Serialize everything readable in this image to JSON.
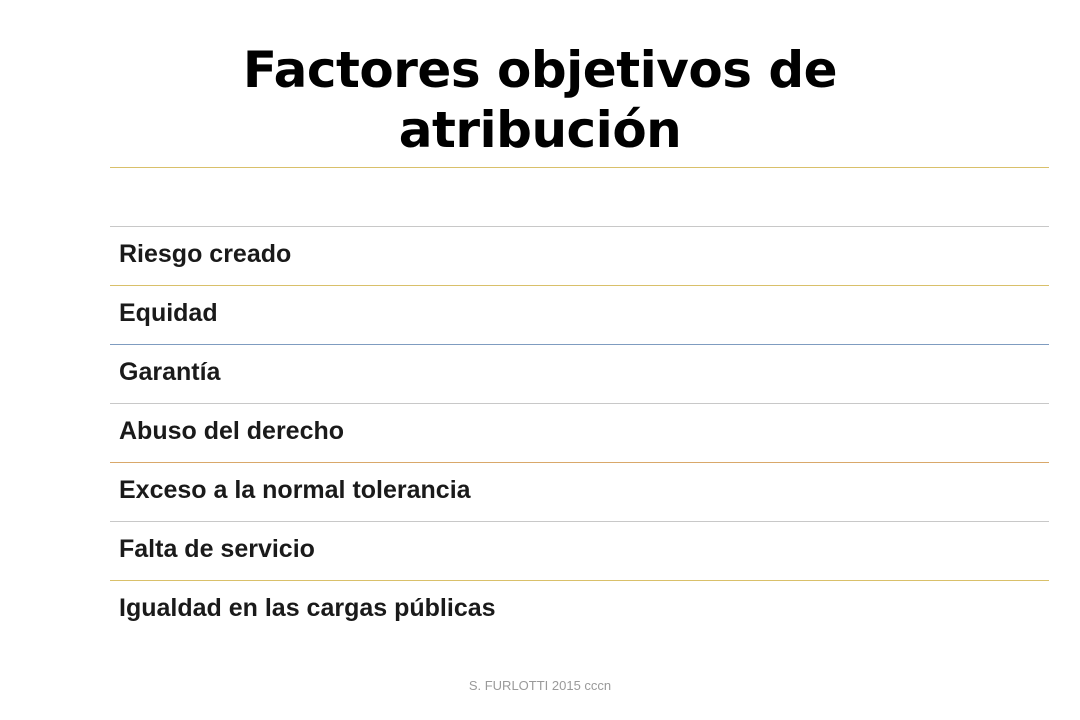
{
  "slide": {
    "title_line1": "Factores objetivos de",
    "title_line2": "atribución",
    "items": [
      "",
      "Riesgo creado",
      "Equidad",
      "Garantía",
      "Abuso del derecho",
      "Exceso a la normal tolerancia",
      "Falta de servicio",
      "Igualdad en las cargas públicas"
    ],
    "divider_colors": [
      "#d9c06a",
      "#c8c8c8",
      "#d9c06a",
      "#7f9cc0",
      "#c8c8c8",
      "#d9a86a",
      "#c8c8c8",
      "#d9c06a"
    ],
    "footer": "S. FURLOTTI 2015 cccn"
  }
}
